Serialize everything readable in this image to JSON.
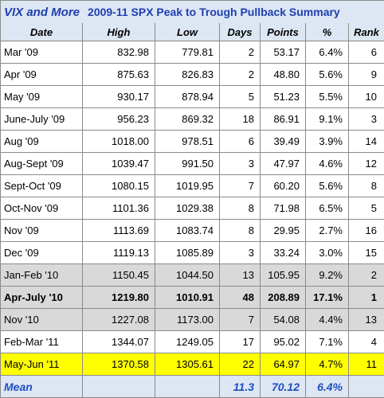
{
  "title": {
    "brand": "VIX and More",
    "text": "2009-11 SPX Peak to Trough Pullback Summary"
  },
  "headers": [
    "Date",
    "High",
    "Low",
    "Days",
    "Points",
    "%",
    "Rank"
  ],
  "rows": [
    {
      "date": "Mar '09",
      "high": "832.98",
      "low": "779.81",
      "days": "2",
      "points": "53.17",
      "pct": "6.4%",
      "rank": "6",
      "style": ""
    },
    {
      "date": "Apr '09",
      "high": "875.63",
      "low": "826.83",
      "days": "2",
      "points": "48.80",
      "pct": "5.6%",
      "rank": "9",
      "style": ""
    },
    {
      "date": "May '09",
      "high": "930.17",
      "low": "878.94",
      "days": "5",
      "points": "51.23",
      "pct": "5.5%",
      "rank": "10",
      "style": ""
    },
    {
      "date": "June-July '09",
      "high": "956.23",
      "low": "869.32",
      "days": "18",
      "points": "86.91",
      "pct": "9.1%",
      "rank": "3",
      "style": ""
    },
    {
      "date": "Aug '09",
      "high": "1018.00",
      "low": "978.51",
      "days": "6",
      "points": "39.49",
      "pct": "3.9%",
      "rank": "14",
      "style": ""
    },
    {
      "date": "Aug-Sept '09",
      "high": "1039.47",
      "low": "991.50",
      "days": "3",
      "points": "47.97",
      "pct": "4.6%",
      "rank": "12",
      "style": ""
    },
    {
      "date": "Sept-Oct '09",
      "high": "1080.15",
      "low": "1019.95",
      "days": "7",
      "points": "60.20",
      "pct": "5.6%",
      "rank": "8",
      "style": ""
    },
    {
      "date": "Oct-Nov '09",
      "high": "1101.36",
      "low": "1029.38",
      "days": "8",
      "points": "71.98",
      "pct": "6.5%",
      "rank": "5",
      "style": ""
    },
    {
      "date": "Nov '09",
      "high": "1113.69",
      "low": "1083.74",
      "days": "8",
      "points": "29.95",
      "pct": "2.7%",
      "rank": "16",
      "style": ""
    },
    {
      "date": "Dec '09",
      "high": "1119.13",
      "low": "1085.89",
      "days": "3",
      "points": "33.24",
      "pct": "3.0%",
      "rank": "15",
      "style": ""
    },
    {
      "date": "Jan-Feb '10",
      "high": "1150.45",
      "low": "1044.50",
      "days": "13",
      "points": "105.95",
      "pct": "9.2%",
      "rank": "2",
      "style": "grey"
    },
    {
      "date": "Apr-July '10",
      "high": "1219.80",
      "low": "1010.91",
      "days": "48",
      "points": "208.89",
      "pct": "17.1%",
      "rank": "1",
      "style": "grey bold"
    },
    {
      "date": "Nov '10",
      "high": "1227.08",
      "low": "1173.00",
      "days": "7",
      "points": "54.08",
      "pct": "4.4%",
      "rank": "13",
      "style": "grey"
    },
    {
      "date": "Feb-Mar '11",
      "high": "1344.07",
      "low": "1249.05",
      "days": "17",
      "points": "95.02",
      "pct": "7.1%",
      "rank": "4",
      "style": ""
    },
    {
      "date": "May-Jun '11",
      "high": "1370.58",
      "low": "1305.61",
      "days": "22",
      "points": "64.97",
      "pct": "4.7%",
      "rank": "11",
      "style": "yellow"
    }
  ],
  "mean": {
    "label": "Mean",
    "days": "11.3",
    "points": "70.12",
    "pct": "6.4%"
  },
  "colors": {
    "header_bg": "#dde6f3",
    "title_text": "#1f3fb0",
    "mean_text": "#1f4fbf",
    "grey_rows": "#d9d9d9",
    "highlight_row": "#ffff00"
  }
}
